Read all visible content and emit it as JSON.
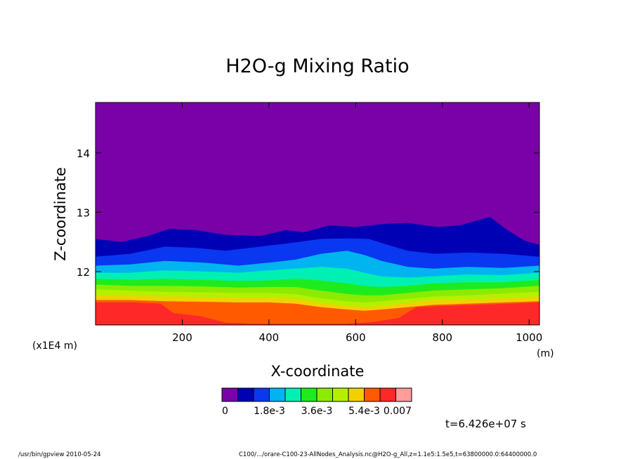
{
  "chart_data": {
    "type": "heatmap",
    "title": "H2O-g Mixing Ratio",
    "xlabel": "X-coordinate",
    "ylabel": "Z-coordinate",
    "x_unit": "(m)",
    "y_unit": "(x1E4 m)",
    "xlim": [
      0,
      1024
    ],
    "ylim": [
      11.1,
      14.85
    ],
    "x_ticks": [
      200,
      400,
      600,
      800,
      1000
    ],
    "y_ticks": [
      12,
      13,
      14
    ],
    "levels": [
      0,
      0.0006,
      0.0012,
      0.0018,
      0.0024,
      0.003,
      0.0036,
      0.0042,
      0.0048,
      0.0054,
      0.006,
      0.0066,
      0.007
    ],
    "colorbar": {
      "colors": [
        "#7a00a8",
        "#0000b4",
        "#0a37f0",
        "#00b4f0",
        "#00f0b4",
        "#1eeb1e",
        "#8ceb00",
        "#b4f000",
        "#f0d200",
        "#ff5a00",
        "#ff2828",
        "#ff9c9c"
      ],
      "labels": [
        "0",
        "1.8e-3",
        "3.6e-3",
        "5.4e-3",
        "0.007"
      ]
    },
    "time_label": "t=6.426e+07 s",
    "footer_left": "/usr/bin/gpview   2010-05-24",
    "footer_right": "C100/.../orare-C100-23-AllNodes_Analysis.nc@H2O-g_All,z=1.1e5:1.5e5,t=63800000.0:64400000.0",
    "contours": [
      {
        "value": 0.0003,
        "color": "#0000b4",
        "profile": [
          [
            0,
            12.55
          ],
          [
            60,
            12.5
          ],
          [
            120,
            12.6
          ],
          [
            170,
            12.72
          ],
          [
            230,
            12.7
          ],
          [
            300,
            12.62
          ],
          [
            380,
            12.6
          ],
          [
            440,
            12.7
          ],
          [
            480,
            12.66
          ],
          [
            540,
            12.78
          ],
          [
            600,
            12.75
          ],
          [
            660,
            12.8
          ],
          [
            720,
            12.82
          ],
          [
            790,
            12.75
          ],
          [
            840,
            12.78
          ],
          [
            890,
            12.88
          ],
          [
            910,
            12.92
          ],
          [
            950,
            12.7
          ],
          [
            990,
            12.52
          ],
          [
            1024,
            12.45
          ]
        ]
      },
      {
        "value": 0.0009,
        "color": "#0a37f0",
        "profile": [
          [
            0,
            12.25
          ],
          [
            80,
            12.3
          ],
          [
            160,
            12.42
          ],
          [
            230,
            12.4
          ],
          [
            300,
            12.35
          ],
          [
            380,
            12.42
          ],
          [
            450,
            12.48
          ],
          [
            520,
            12.55
          ],
          [
            580,
            12.56
          ],
          [
            630,
            12.55
          ],
          [
            660,
            12.48
          ],
          [
            720,
            12.35
          ],
          [
            780,
            12.3
          ],
          [
            860,
            12.32
          ],
          [
            940,
            12.3
          ],
          [
            1024,
            12.25
          ]
        ]
      },
      {
        "value": 0.0015,
        "color": "#00b4f0",
        "profile": [
          [
            0,
            12.1
          ],
          [
            80,
            12.12
          ],
          [
            160,
            12.18
          ],
          [
            250,
            12.15
          ],
          [
            330,
            12.1
          ],
          [
            400,
            12.15
          ],
          [
            460,
            12.2
          ],
          [
            520,
            12.3
          ],
          [
            580,
            12.35
          ],
          [
            620,
            12.28
          ],
          [
            660,
            12.18
          ],
          [
            720,
            12.08
          ],
          [
            780,
            12.05
          ],
          [
            860,
            12.08
          ],
          [
            940,
            12.06
          ],
          [
            1024,
            12.1
          ]
        ]
      },
      {
        "value": 0.0021,
        "color": "#00f0b4",
        "profile": [
          [
            0,
            11.98
          ],
          [
            80,
            11.98
          ],
          [
            160,
            12.02
          ],
          [
            250,
            12.0
          ],
          [
            330,
            11.98
          ],
          [
            400,
            12.02
          ],
          [
            460,
            12.05
          ],
          [
            520,
            12.08
          ],
          [
            580,
            12.05
          ],
          [
            620,
            11.98
          ],
          [
            660,
            11.92
          ],
          [
            720,
            11.9
          ],
          [
            780,
            11.92
          ],
          [
            860,
            11.95
          ],
          [
            940,
            11.94
          ],
          [
            1024,
            11.98
          ]
        ]
      },
      {
        "value": 0.0027,
        "color": "#1eeb1e",
        "profile": [
          [
            0,
            11.88
          ],
          [
            80,
            11.86
          ],
          [
            160,
            11.88
          ],
          [
            250,
            11.86
          ],
          [
            330,
            11.84
          ],
          [
            400,
            11.85
          ],
          [
            460,
            11.88
          ],
          [
            520,
            11.85
          ],
          [
            580,
            11.8
          ],
          [
            620,
            11.76
          ],
          [
            660,
            11.74
          ],
          [
            720,
            11.76
          ],
          [
            780,
            11.8
          ],
          [
            860,
            11.82
          ],
          [
            940,
            11.82
          ],
          [
            1024,
            11.86
          ]
        ]
      },
      {
        "value": 0.0033,
        "color": "#8ceb00",
        "profile": [
          [
            0,
            11.78
          ],
          [
            80,
            11.76
          ],
          [
            160,
            11.76
          ],
          [
            250,
            11.75
          ],
          [
            330,
            11.73
          ],
          [
            400,
            11.74
          ],
          [
            460,
            11.74
          ],
          [
            520,
            11.68
          ],
          [
            580,
            11.62
          ],
          [
            620,
            11.6
          ],
          [
            660,
            11.6
          ],
          [
            720,
            11.64
          ],
          [
            780,
            11.68
          ],
          [
            860,
            11.7
          ],
          [
            940,
            11.72
          ],
          [
            1024,
            11.76
          ]
        ]
      },
      {
        "value": 0.0039,
        "color": "#b4f000",
        "profile": [
          [
            0,
            11.7
          ],
          [
            80,
            11.68
          ],
          [
            160,
            11.66
          ],
          [
            250,
            11.65
          ],
          [
            330,
            11.64
          ],
          [
            400,
            11.64
          ],
          [
            460,
            11.62
          ],
          [
            520,
            11.55
          ],
          [
            580,
            11.5
          ],
          [
            620,
            11.48
          ],
          [
            660,
            11.5
          ],
          [
            720,
            11.54
          ],
          [
            780,
            11.58
          ],
          [
            860,
            11.6
          ],
          [
            940,
            11.63
          ],
          [
            1024,
            11.66
          ]
        ]
      },
      {
        "value": 0.0045,
        "color": "#f0d200",
        "profile": [
          [
            0,
            11.6
          ],
          [
            80,
            11.59
          ],
          [
            160,
            11.58
          ],
          [
            250,
            11.57
          ],
          [
            330,
            11.56
          ],
          [
            400,
            11.56
          ],
          [
            460,
            11.54
          ],
          [
            520,
            11.47
          ],
          [
            580,
            11.42
          ],
          [
            620,
            11.4
          ],
          [
            660,
            11.42
          ],
          [
            720,
            11.47
          ],
          [
            780,
            11.52
          ],
          [
            860,
            11.53
          ],
          [
            940,
            11.55
          ],
          [
            1024,
            11.58
          ]
        ]
      },
      {
        "value": 0.0051,
        "color": "#ff5a00",
        "profile": [
          [
            0,
            11.52
          ],
          [
            80,
            11.52
          ],
          [
            160,
            11.5
          ],
          [
            250,
            11.49
          ],
          [
            330,
            11.48
          ],
          [
            400,
            11.48
          ],
          [
            460,
            11.46
          ],
          [
            520,
            11.4
          ],
          [
            580,
            11.36
          ],
          [
            620,
            11.34
          ],
          [
            660,
            11.36
          ],
          [
            720,
            11.4
          ],
          [
            780,
            11.44
          ],
          [
            860,
            11.46
          ],
          [
            940,
            11.48
          ],
          [
            1024,
            11.5
          ]
        ]
      },
      {
        "value": 0.0057,
        "color": "#ff2828",
        "profile": [
          [
            0,
            11.48
          ],
          [
            80,
            11.48
          ],
          [
            150,
            11.46
          ],
          [
            180,
            11.3
          ],
          [
            240,
            11.25
          ],
          [
            300,
            11.14
          ],
          [
            360,
            11.12
          ],
          [
            440,
            11.12
          ],
          [
            520,
            11.12
          ],
          [
            580,
            11.12
          ],
          [
            640,
            11.15
          ],
          [
            700,
            11.22
          ],
          [
            740,
            11.4
          ],
          [
            800,
            11.42
          ],
          [
            880,
            11.44
          ],
          [
            960,
            11.46
          ],
          [
            1024,
            11.48
          ]
        ]
      }
    ]
  }
}
